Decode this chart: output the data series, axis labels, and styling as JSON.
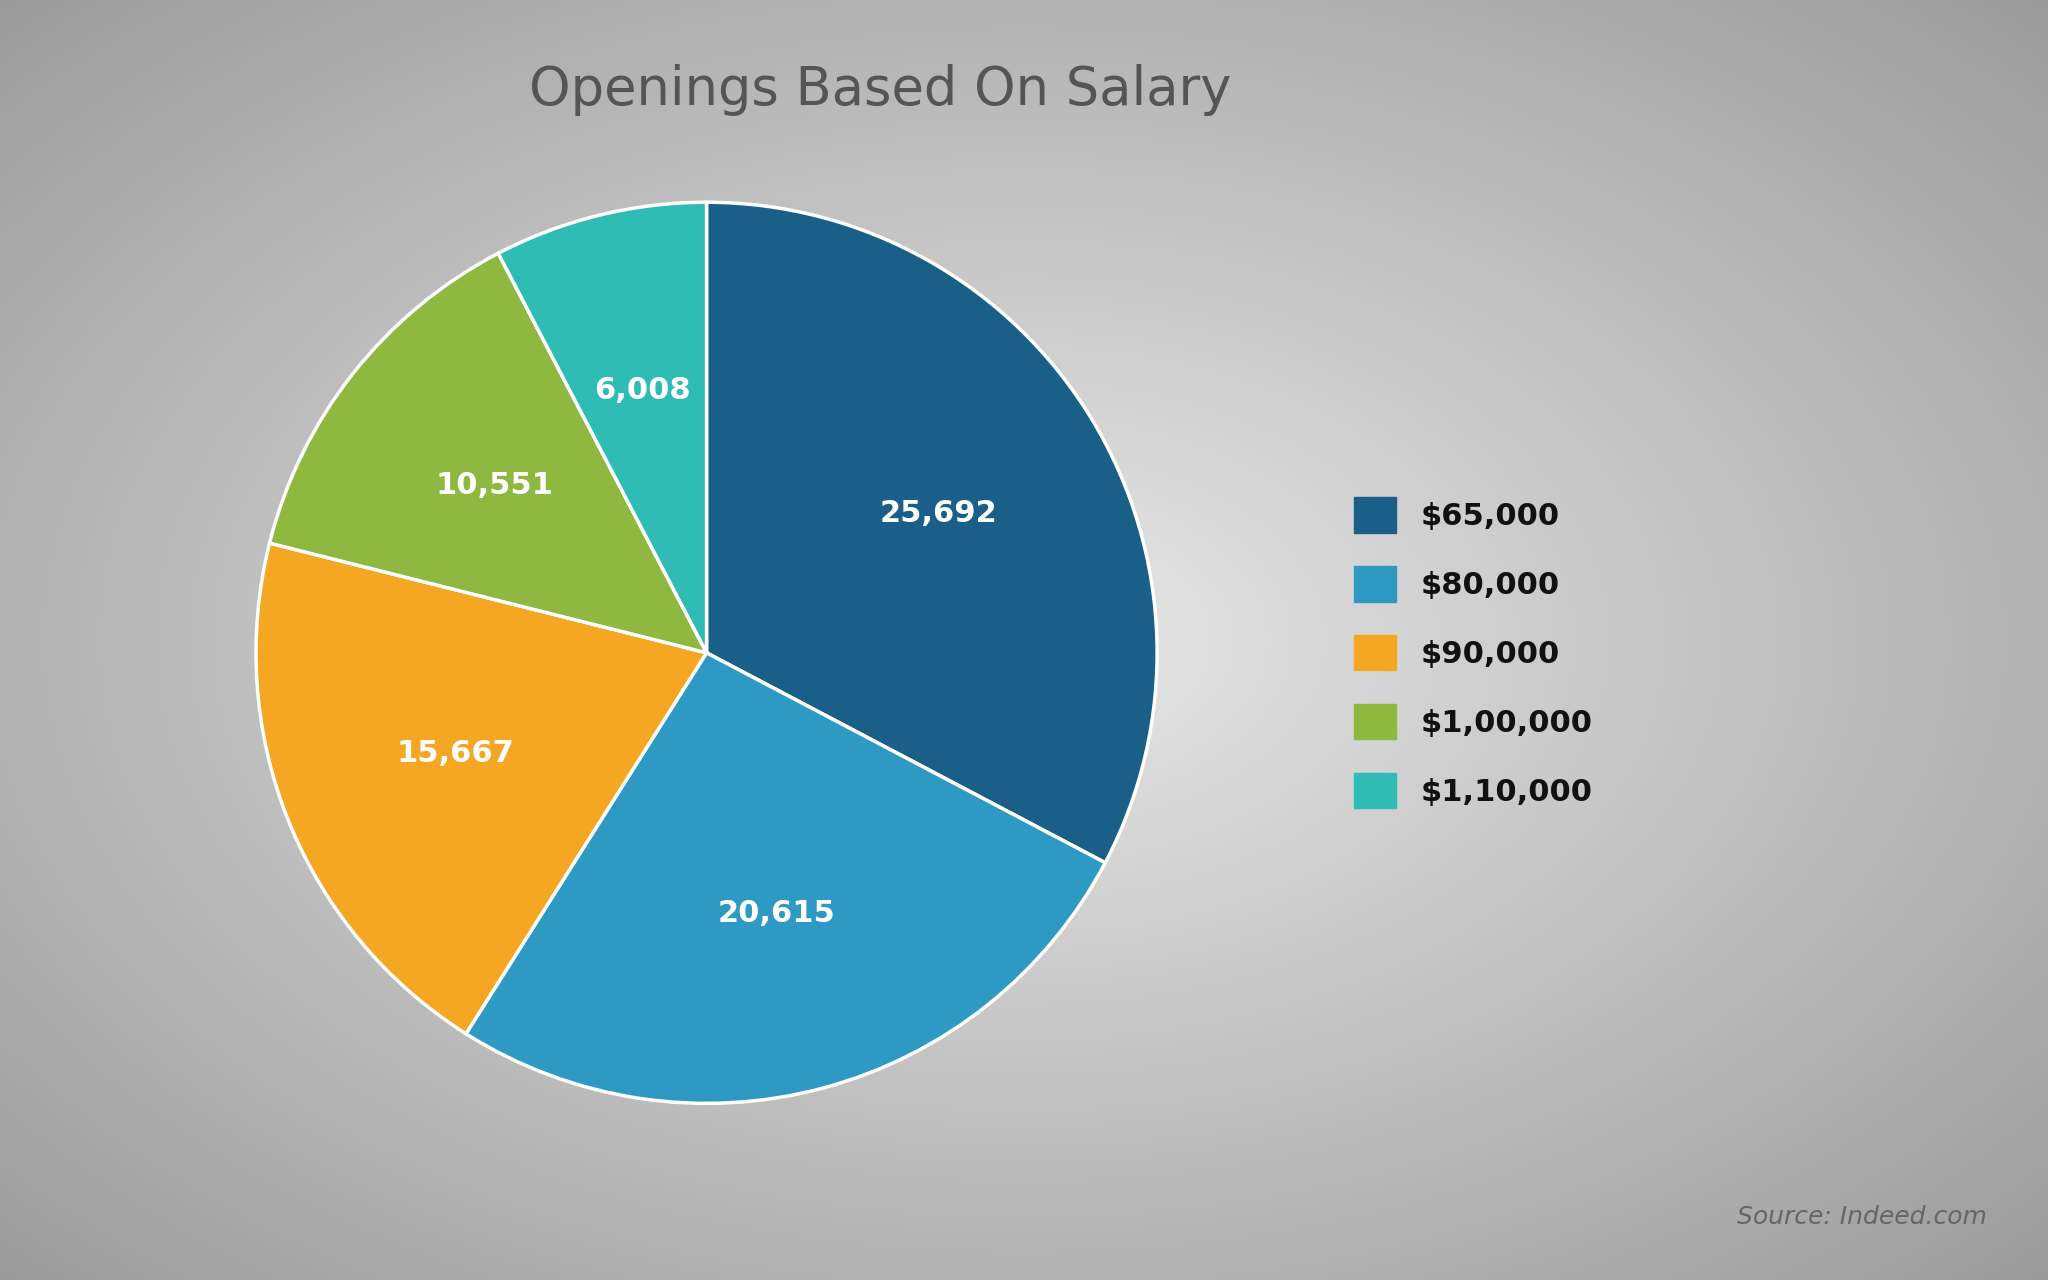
{
  "title": "Openings Based On Salary",
  "title_fontsize": 38,
  "title_color": "#555555",
  "labels": [
    "$65,000",
    "$80,000",
    "$90,000",
    "$1,00,000",
    "$1,10,000"
  ],
  "values": [
    25692,
    20615,
    15667,
    10551,
    6008
  ],
  "label_texts": [
    "25,692",
    "20,615",
    "15,667",
    "10,551",
    "6,008"
  ],
  "colors": [
    "#1a5f87",
    "#2e9ac4",
    "#f5a623",
    "#8fb840",
    "#2fbcb4"
  ],
  "source_text": "Source: Indeed.com",
  "source_fontsize": 18,
  "source_color": "#666666",
  "label_fontsize": 22,
  "label_color": "white",
  "legend_fontsize": 22,
  "startangle": 90
}
